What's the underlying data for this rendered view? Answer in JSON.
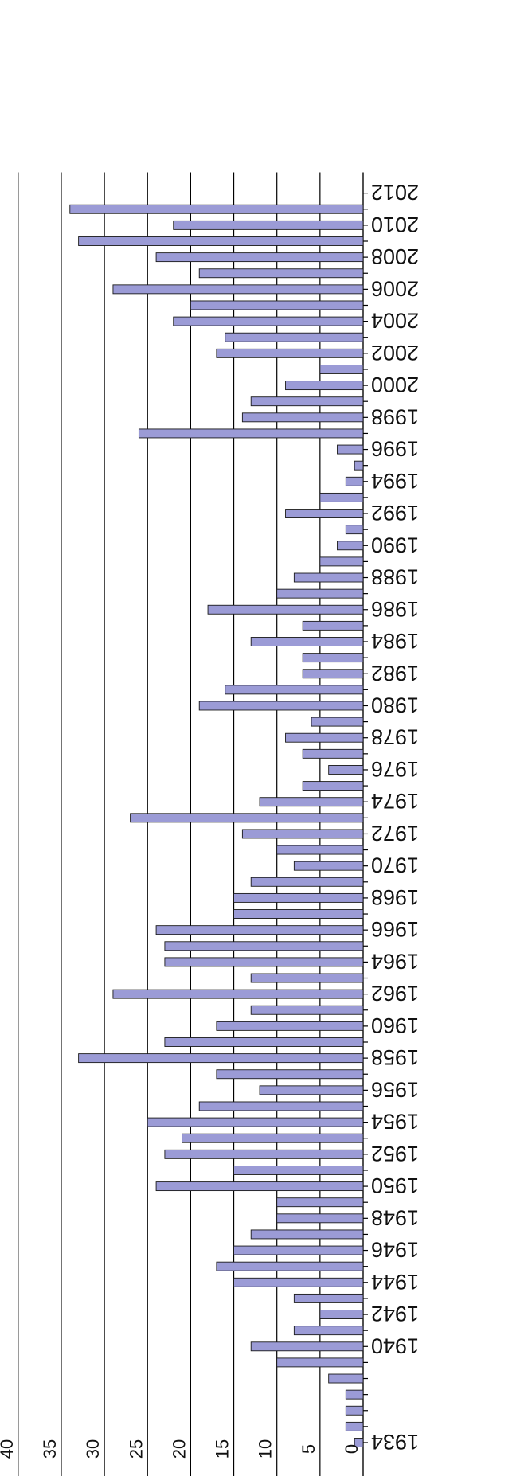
{
  "chart_data": {
    "type": "bar",
    "orientation": "vertical-figure-rotated-180",
    "title": "",
    "xlabel": "",
    "ylabel": "",
    "ylim": [
      0,
      40
    ],
    "y_ticks": [
      0,
      5,
      10,
      15,
      20,
      25,
      30,
      35,
      40
    ],
    "grid": true,
    "categories": [
      1934,
      1935,
      1936,
      1937,
      1938,
      1939,
      1940,
      1941,
      1942,
      1943,
      1944,
      1945,
      1946,
      1947,
      1948,
      1949,
      1950,
      1951,
      1952,
      1953,
      1954,
      1955,
      1956,
      1957,
      1958,
      1959,
      1960,
      1961,
      1962,
      1963,
      1964,
      1965,
      1966,
      1967,
      1968,
      1969,
      1970,
      1971,
      1972,
      1973,
      1974,
      1975,
      1976,
      1977,
      1978,
      1979,
      1980,
      1981,
      1982,
      1983,
      1984,
      1985,
      1986,
      1987,
      1988,
      1989,
      1990,
      1991,
      1992,
      1993,
      1994,
      1995,
      1996,
      1997,
      1998,
      1999,
      2000,
      2001,
      2002,
      2003,
      2004,
      2005,
      2006,
      2007,
      2008,
      2009,
      2010,
      2011,
      2012
    ],
    "category_tick_labels": [
      "1934",
      "1940",
      "1942",
      "1944",
      "1946",
      "1948",
      "1950",
      "1952",
      "1954",
      "1956",
      "1958",
      "1960",
      "1962",
      "1964",
      "1966",
      "1968",
      "1970",
      "1972",
      "1974",
      "1976",
      "1978",
      "1980",
      "1982",
      "1984",
      "1986",
      "1988",
      "1990",
      "1992",
      "1994",
      "1996",
      "1998",
      "2000",
      "2002",
      "2004",
      "2006",
      "2008",
      "2010",
      "2012"
    ],
    "values": [
      1,
      2,
      2,
      2,
      4,
      10,
      13,
      8,
      5,
      8,
      15,
      17,
      15,
      13,
      10,
      10,
      24,
      15,
      23,
      21,
      25,
      19,
      12,
      17,
      33,
      23,
      17,
      13,
      29,
      13,
      23,
      23,
      24,
      15,
      15,
      13,
      8,
      10,
      14,
      27,
      12,
      7,
      4,
      7,
      9,
      6,
      19,
      16,
      7,
      7,
      13,
      7,
      18,
      10,
      8,
      5,
      3,
      2,
      9,
      5,
      2,
      1,
      3,
      26,
      14,
      13,
      9,
      5,
      17,
      16,
      22,
      20,
      29,
      19,
      24,
      33,
      22,
      34,
      0
    ],
    "colors": {
      "bar_fill": "#9b9bd6",
      "bar_stroke": "#1a1a1a",
      "grid": "#000000"
    }
  }
}
